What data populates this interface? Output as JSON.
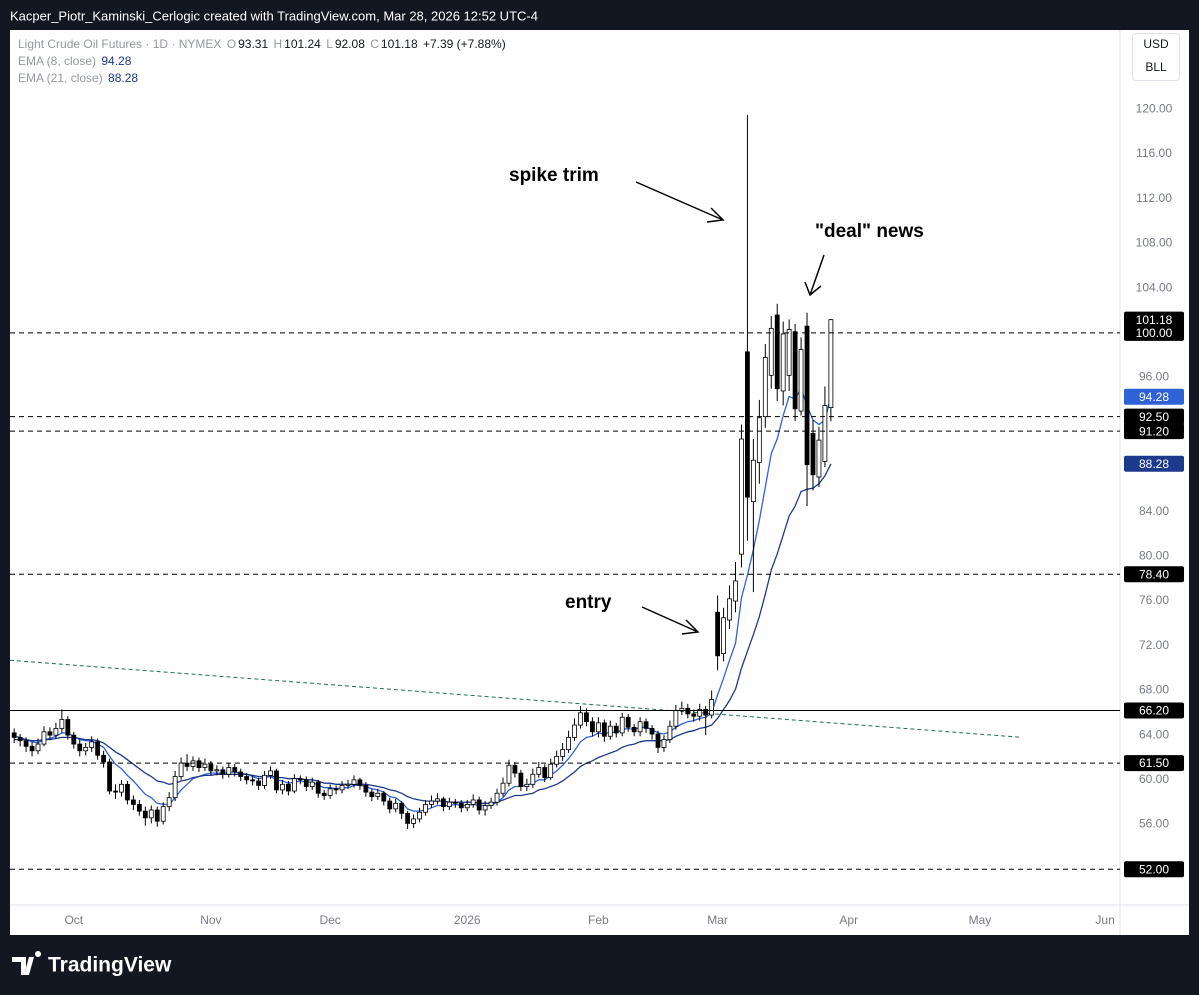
{
  "header": {
    "credit": "Kacper_Piotr_Kaminski_Cerlogic created with TradingView.com, Mar 28, 2026 12:52 UTC-4",
    "logo": "TradingView"
  },
  "chart_data": {
    "type": "candlestick",
    "title": "Light Crude Oil Futures · 1D · NYMEX",
    "ohlc_labels": [
      "O",
      "H",
      "L",
      "C"
    ],
    "change": "+7.39 (+7.88%)",
    "currency": "USD",
    "unit": "BLL",
    "up_color": "#ffffff",
    "down_color": "#000000",
    "open": [
      64.2,
      63.8,
      63.5,
      63.0,
      62.6,
      63.2,
      64.3,
      64.0,
      64.6,
      65.4,
      64.0,
      63.2,
      62.6,
      62.9,
      63.4,
      62.2,
      61.6,
      59.0,
      58.9,
      59.6,
      58.2,
      57.8,
      57.2,
      56.6,
      57.3,
      56.3,
      57.6,
      58.4,
      60.3,
      61.5,
      61.2,
      61.7,
      61.1,
      61.4,
      60.8,
      60.9,
      60.5,
      61.1,
      60.7,
      60.3,
      60.0,
      59.9,
      59.5,
      60.4,
      60.8,
      59.1,
      59.6,
      59.0,
      60.1,
      60.0,
      59.4,
      59.8,
      58.8,
      58.6,
      59.2,
      59.1,
      59.5,
      59.6,
      60.0,
      59.5,
      58.9,
      58.5,
      58.8,
      58.1,
      57.4,
      57.9,
      57.0,
      56.1,
      56.5,
      57.1,
      57.8,
      58.1,
      58.3,
      57.6,
      58.0,
      57.9,
      57.5,
      57.8,
      58.2,
      57.3,
      57.7,
      58.0,
      58.8,
      59.7,
      61.3,
      60.6,
      59.4,
      59.6,
      60.5,
      61.1,
      60.2,
      61.4,
      62.1,
      62.7,
      63.8,
      64.9,
      66.0,
      65.2,
      64.3,
      65.1,
      63.9,
      64.8,
      64.2,
      65.6,
      64.7,
      64.3,
      65.2,
      64.6,
      64.1,
      62.9,
      63.6,
      64.8,
      66.2,
      66.4,
      65.9,
      65.7,
      66.3,
      65.8,
      75.0,
      71.3,
      74.3,
      76.0,
      80.2,
      98.3,
      84.9,
      88.4,
      92.5,
      96.2,
      101.6,
      94.8,
      96.2,
      100.1,
      93.0,
      100.6,
      91.0,
      87.1,
      88.5,
      93.31
    ],
    "high": [
      64.6,
      64.1,
      63.8,
      63.4,
      63.7,
      64.8,
      64.7,
      65.1,
      66.3,
      65.7,
      64.3,
      63.6,
      63.3,
      63.9,
      63.7,
      62.6,
      61.9,
      59.6,
      60.0,
      59.9,
      58.6,
      58.2,
      57.6,
      57.7,
      57.6,
      58.0,
      58.9,
      60.8,
      62.0,
      62.3,
      62.1,
      62.0,
      61.9,
      61.7,
      61.3,
      61.2,
      61.5,
      61.4,
      61.0,
      60.6,
      60.4,
      60.2,
      60.8,
      61.2,
      61.0,
      60.0,
      59.9,
      60.5,
      60.4,
      60.3,
      60.2,
      60.0,
      59.1,
      59.6,
      59.5,
      59.9,
      60.0,
      60.4,
      60.2,
      59.8,
      59.2,
      59.2,
      59.0,
      58.4,
      58.3,
      58.1,
      57.2,
      56.9,
      57.5,
      58.2,
      58.6,
      58.8,
      58.5,
      58.4,
      58.3,
      58.2,
      58.2,
      58.7,
      58.5,
      58.1,
      58.4,
      59.2,
      60.2,
      61.8,
      61.6,
      60.9,
      60.1,
      61.0,
      61.6,
      61.4,
      61.9,
      62.6,
      63.3,
      64.4,
      65.5,
      66.6,
      66.4,
      65.6,
      65.6,
      65.4,
      65.3,
      65.1,
      66.0,
      65.9,
      65.0,
      65.6,
      65.5,
      64.9,
      64.4,
      64.0,
      65.3,
      66.7,
      67.0,
      66.8,
      66.3,
      66.8,
      66.6,
      68.0,
      76.5,
      75.4,
      77.4,
      79.5,
      91.8,
      119.5,
      90.5,
      94.0,
      99.0,
      101.5,
      102.6,
      101.0,
      101.2,
      100.8,
      99.6,
      101.8,
      92.2,
      91.6,
      95.2,
      101.24
    ],
    "low": [
      63.3,
      63.0,
      62.5,
      62.1,
      62.3,
      63.0,
      63.6,
      63.7,
      64.2,
      63.6,
      62.8,
      62.1,
      62.2,
      62.5,
      61.8,
      61.1,
      58.7,
      58.3,
      58.5,
      57.8,
      57.3,
      56.8,
      55.9,
      56.1,
      55.8,
      56.0,
      57.2,
      58.1,
      60.0,
      60.8,
      60.8,
      60.7,
      60.8,
      60.4,
      60.4,
      60.1,
      60.2,
      60.3,
      59.9,
      59.6,
      59.5,
      59.1,
      59.2,
      60.1,
      58.8,
      58.7,
      58.6,
      58.8,
      59.6,
      59.0,
      59.1,
      58.4,
      58.2,
      58.3,
      58.7,
      58.8,
      59.2,
      59.3,
      59.1,
      58.5,
      58.1,
      58.2,
      57.7,
      57.0,
      57.1,
      56.5,
      55.6,
      55.7,
      56.2,
      56.8,
      57.5,
      57.8,
      57.2,
      57.3,
      57.5,
      57.1,
      57.2,
      57.5,
      56.9,
      56.8,
      57.4,
      57.7,
      58.5,
      59.4,
      60.2,
      59.0,
      59.0,
      59.3,
      60.2,
      59.8,
      60.0,
      61.1,
      61.7,
      62.4,
      63.5,
      64.6,
      64.8,
      63.9,
      63.8,
      63.4,
      63.6,
      63.8,
      63.9,
      64.3,
      63.9,
      63.9,
      64.2,
      63.6,
      62.4,
      62.5,
      63.3,
      64.5,
      65.8,
      65.5,
      65.2,
      65.3,
      64.0,
      65.5,
      69.8,
      70.6,
      73.5,
      75.0,
      79.0,
      81.4,
      76.8,
      86.5,
      91.5,
      95.0,
      93.9,
      93.5,
      94.8,
      92.1,
      92.6,
      84.5,
      85.9,
      86.2,
      88.0,
      92.08
    ],
    "close": [
      63.8,
      63.5,
      63.0,
      62.6,
      63.2,
      64.3,
      64.0,
      64.6,
      65.4,
      64.0,
      63.2,
      62.6,
      62.9,
      63.4,
      62.2,
      61.6,
      59.0,
      58.9,
      59.6,
      58.2,
      57.8,
      57.2,
      56.6,
      57.3,
      56.3,
      57.6,
      58.4,
      60.3,
      61.5,
      61.2,
      61.7,
      61.1,
      61.4,
      60.8,
      60.9,
      60.5,
      61.1,
      60.7,
      60.3,
      60.0,
      59.9,
      59.5,
      60.4,
      60.8,
      59.1,
      59.6,
      59.0,
      60.1,
      60.0,
      59.4,
      59.8,
      58.8,
      58.6,
      59.2,
      59.1,
      59.5,
      59.6,
      60.0,
      59.5,
      58.9,
      58.5,
      58.8,
      58.1,
      57.4,
      57.9,
      57.0,
      56.1,
      56.5,
      57.1,
      57.8,
      58.1,
      58.3,
      57.6,
      58.0,
      57.9,
      57.5,
      57.8,
      58.2,
      57.3,
      57.7,
      58.0,
      58.8,
      59.7,
      61.3,
      60.6,
      59.4,
      59.6,
      60.5,
      61.1,
      60.2,
      61.4,
      62.1,
      62.7,
      63.8,
      64.9,
      66.0,
      65.2,
      64.3,
      65.1,
      63.9,
      64.8,
      64.2,
      65.6,
      64.7,
      64.3,
      65.2,
      64.6,
      64.1,
      62.9,
      63.6,
      64.8,
      66.2,
      66.4,
      65.9,
      65.7,
      66.3,
      65.8,
      67.2,
      71.1,
      74.5,
      76.2,
      77.8,
      90.5,
      85.3,
      88.6,
      92.4,
      97.8,
      100.4,
      95.0,
      99.9,
      100.3,
      93.2,
      98.5,
      88.2,
      87.3,
      90.4,
      93.5,
      101.18
    ],
    "ema": [
      {
        "name": "EMA (8, close)",
        "color": "#2f62d6",
        "values": [
          63.9,
          63.8,
          63.6,
          63.4,
          63.3,
          63.6,
          63.7,
          63.9,
          64.2,
          64.2,
          63.9,
          63.6,
          63.5,
          63.5,
          63.2,
          62.9,
          62.1,
          61.4,
          61.0,
          60.4,
          59.9,
          59.3,
          58.7,
          58.4,
          57.9,
          57.8,
          57.8,
          58.4,
          59.1,
          59.6,
          60.1,
          60.3,
          60.5,
          60.6,
          60.6,
          60.6,
          60.7,
          60.7,
          60.6,
          60.5,
          60.3,
          60.1,
          60.2,
          60.3,
          60.0,
          59.9,
          59.7,
          59.8,
          59.9,
          59.8,
          59.8,
          59.5,
          59.3,
          59.3,
          59.2,
          59.3,
          59.3,
          59.5,
          59.5,
          59.4,
          59.2,
          59.1,
          58.9,
          58.5,
          58.4,
          58.0,
          57.4,
          57.2,
          57.2,
          57.3,
          57.5,
          57.7,
          57.7,
          57.7,
          57.8,
          57.7,
          57.7,
          57.8,
          57.7,
          57.7,
          57.7,
          58.0,
          58.4,
          59.1,
          59.4,
          59.4,
          59.5,
          59.7,
          60.0,
          60.0,
          60.4,
          60.8,
          61.3,
          61.9,
          62.6,
          63.4,
          63.8,
          63.9,
          64.2,
          64.1,
          64.3,
          64.2,
          64.5,
          64.6,
          64.5,
          64.7,
          64.7,
          64.5,
          64.2,
          64.1,
          64.3,
          64.7,
          65.0,
          65.2,
          65.3,
          65.5,
          65.6,
          66.0,
          67.6,
          69.1,
          70.7,
          72.2,
          76.3,
          78.3,
          80.6,
          83.2,
          86.2,
          89.2,
          90.5,
          92.6,
          94.3,
          94.1,
          95.0,
          93.5,
          92.2,
          91.8,
          92.2,
          94.28
        ]
      },
      {
        "name": "EMA (21, close)",
        "color": "#1c3a8c",
        "values": [
          63.6,
          63.6,
          63.6,
          63.5,
          63.5,
          63.6,
          63.6,
          63.7,
          63.8,
          63.8,
          63.8,
          63.7,
          63.6,
          63.6,
          63.5,
          63.3,
          62.9,
          62.5,
          62.2,
          61.8,
          61.4,
          61.0,
          60.6,
          60.3,
          59.9,
          59.8,
          59.6,
          59.7,
          59.9,
          60.0,
          60.2,
          60.3,
          60.4,
          60.4,
          60.5,
          60.5,
          60.5,
          60.5,
          60.5,
          60.5,
          60.4,
          60.3,
          60.3,
          60.4,
          60.2,
          60.2,
          60.1,
          60.1,
          60.1,
          60.0,
          60.0,
          59.9,
          59.7,
          59.7,
          59.6,
          59.6,
          59.6,
          59.6,
          59.6,
          59.6,
          59.5,
          59.4,
          59.3,
          59.1,
          59.0,
          58.8,
          58.5,
          58.3,
          58.2,
          58.1,
          58.1,
          58.1,
          58.1,
          58.0,
          58.0,
          58.0,
          58.0,
          58.0,
          57.9,
          57.9,
          57.9,
          58.0,
          58.2,
          58.4,
          58.6,
          58.6,
          58.7,
          58.8,
          59.1,
          59.2,
          59.4,
          59.6,
          59.9,
          60.3,
          60.7,
          61.2,
          61.5,
          61.7,
          62.0,
          62.2,
          62.4,
          62.6,
          62.9,
          63.1,
          63.2,
          63.4,
          63.5,
          63.5,
          63.5,
          63.5,
          63.6,
          63.9,
          64.1,
          64.3,
          64.4,
          64.6,
          64.7,
          64.9,
          65.5,
          66.3,
          67.1,
          68.1,
          70.0,
          71.5,
          73.0,
          74.6,
          76.6,
          78.8,
          80.2,
          81.9,
          83.6,
          84.5,
          85.8,
          86.0,
          86.1,
          86.5,
          87.2,
          88.28
        ]
      }
    ],
    "xlim": [
      -0.7,
      185.5
    ],
    "xticks": [
      {
        "value": 10,
        "label": "Oct"
      },
      {
        "value": 33,
        "label": "Nov"
      },
      {
        "value": 53,
        "label": "Dec"
      },
      {
        "value": 76,
        "label": "2026"
      },
      {
        "value": 98,
        "label": "Feb"
      },
      {
        "value": 118,
        "label": "Mar"
      },
      {
        "value": 140,
        "label": "Apr"
      },
      {
        "value": 162,
        "label": "May"
      },
      {
        "value": 183,
        "label": "Jun"
      }
    ],
    "ylim": [
      48.8,
      127.1
    ],
    "yticks": [
      {
        "value": 56,
        "label": "56.00"
      },
      {
        "value": 60,
        "label": "60.00"
      },
      {
        "value": 64,
        "label": "64.00"
      },
      {
        "value": 68,
        "label": "68.00"
      },
      {
        "value": 72,
        "label": "72.00"
      },
      {
        "value": 76,
        "label": "76.00"
      },
      {
        "value": 80,
        "label": "80.00"
      },
      {
        "value": 84,
        "label": "84.00"
      },
      {
        "value": 96,
        "label": "96.00"
      },
      {
        "value": 104,
        "label": "104.00"
      },
      {
        "value": 108,
        "label": "108.00"
      },
      {
        "value": 112,
        "label": "112.00"
      },
      {
        "value": 116,
        "label": "116.00"
      },
      {
        "value": 120,
        "label": "120.00"
      }
    ],
    "levels": [
      {
        "value": 100,
        "label": "100.00",
        "style": "dashed"
      },
      {
        "value": 92.5,
        "label": "92.50",
        "style": "dashed"
      },
      {
        "value": 91.2,
        "label": "91.20",
        "style": "dashed"
      },
      {
        "value": 78.4,
        "label": "78.40",
        "style": "dashed"
      },
      {
        "value": 66.2,
        "label": "66.20",
        "style": "solid"
      },
      {
        "value": 61.5,
        "label": "61.50",
        "style": "dashed"
      },
      {
        "value": 52,
        "label": "52.00",
        "style": "dashed"
      }
    ],
    "trendline": {
      "x": [
        -0.7,
        169.1
      ],
      "values": [
        70.7,
        63.8
      ]
    },
    "annotations": [
      "spike trim",
      "\"deal\" news",
      "entry"
    ],
    "grid": false
  }
}
